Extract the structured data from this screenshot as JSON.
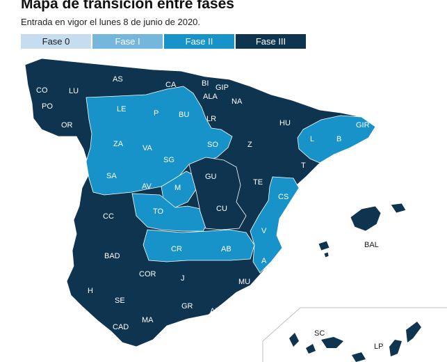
{
  "title": "Mapa de transición entre fases",
  "subtitle": "Entrada en vigor el lunes 8 de junio de 2020.",
  "legend": [
    {
      "label": "Fase 0",
      "color": "#c6dcef"
    },
    {
      "label": "Fase I",
      "color": "#74b6dc"
    },
    {
      "label": "Fase II",
      "color": "#1793c9"
    },
    {
      "label": "Fase III",
      "color": "#0e3450"
    }
  ],
  "provinces": {
    "CO": "CO",
    "LU": "LU",
    "AS": "AS",
    "CA": "CA",
    "BI": "BI",
    "GIP": "GIP",
    "ALA": "ALA",
    "NA": "NA",
    "PO": "PO",
    "OR": "OR",
    "LE": "LE",
    "P": "P",
    "BU": "BU",
    "LR": "LR",
    "HU": "HU",
    "GIR": "GIR",
    "ZA": "ZA",
    "VA": "VA",
    "SO": "SO",
    "Z": "Z",
    "L": "L",
    "B": "B",
    "SG": "SG",
    "SA": "SA",
    "GU": "GU",
    "T": "T",
    "AV": "AV",
    "M": "M",
    "TE": "TE",
    "CS": "CS",
    "CC": "CC",
    "TO": "TO",
    "CU": "CU",
    "V": "V",
    "BAL": "BAL",
    "BAD": "BAD",
    "CR": "CR",
    "AB": "AB",
    "A": "A",
    "COR": "COR",
    "J": "J",
    "MU": "MU",
    "H": "H",
    "SE": "SE",
    "GR": "GR",
    "ALM": "ALM",
    "CAD": "CAD",
    "MA": "MA",
    "SC": "SC",
    "LP": "LP"
  }
}
